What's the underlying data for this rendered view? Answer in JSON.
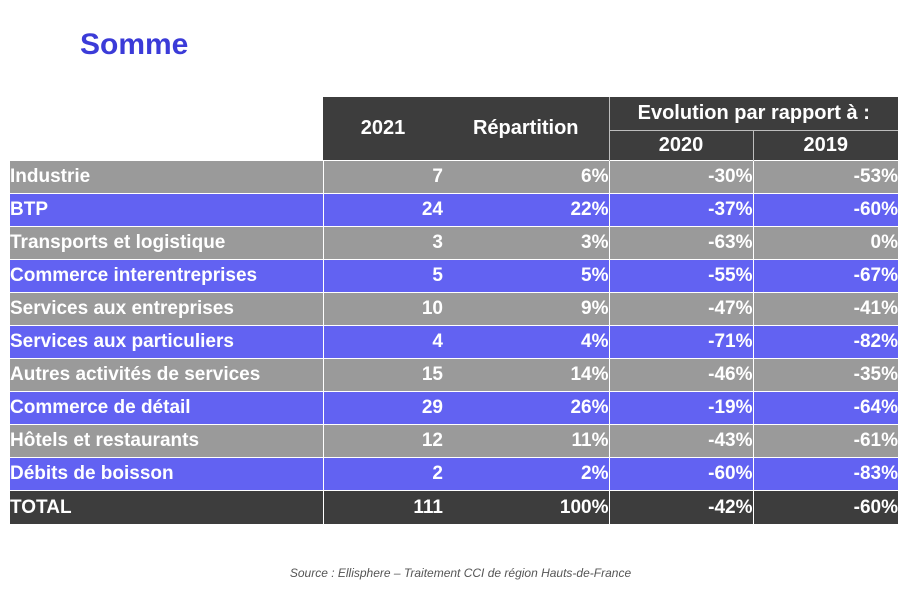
{
  "title": "Somme",
  "table": {
    "headers": {
      "year": "2021",
      "share": "Répartition",
      "evolution": "Evolution par rapport à :",
      "y2020": "2020",
      "y2019": "2019"
    },
    "rows": [
      {
        "label": "Industrie",
        "v2021": "7",
        "share": "6%",
        "e2020": "-30%",
        "e2019": "-53%"
      },
      {
        "label": "BTP",
        "v2021": "24",
        "share": "22%",
        "e2020": "-37%",
        "e2019": "-60%"
      },
      {
        "label": "Transports et logistique",
        "v2021": "3",
        "share": "3%",
        "e2020": "-63%",
        "e2019": "0%"
      },
      {
        "label": "Commerce interentreprises",
        "v2021": "5",
        "share": "5%",
        "e2020": "-55%",
        "e2019": "-67%"
      },
      {
        "label": "Services aux entreprises",
        "v2021": "10",
        "share": "9%",
        "e2020": "-47%",
        "e2019": "-41%"
      },
      {
        "label": "Services aux particuliers",
        "v2021": "4",
        "share": "4%",
        "e2020": "-71%",
        "e2019": "-82%"
      },
      {
        "label": "Autres activités de services",
        "v2021": "15",
        "share": "14%",
        "e2020": "-46%",
        "e2019": "-35%"
      },
      {
        "label": "Commerce de détail",
        "v2021": "29",
        "share": "26%",
        "e2020": "-19%",
        "e2019": "-64%"
      },
      {
        "label": "Hôtels et restaurants",
        "v2021": "12",
        "share": "11%",
        "e2020": "-43%",
        "e2019": "-61%"
      },
      {
        "label": "Débits de boisson",
        "v2021": "2",
        "share": "2%",
        "e2020": "-60%",
        "e2019": "-83%"
      }
    ],
    "total": {
      "label": "TOTAL",
      "v2021": "111",
      "share": "100%",
      "e2020": "-42%",
      "e2019": "-60%"
    }
  },
  "source": "Source : Ellisphere – Traitement CCI de région Hauts-de-France",
  "colors": {
    "title": "#3b3bd8",
    "header": "#3d3d3d",
    "row_gray": "#9a9a9a",
    "row_blue": "#6262f2"
  }
}
